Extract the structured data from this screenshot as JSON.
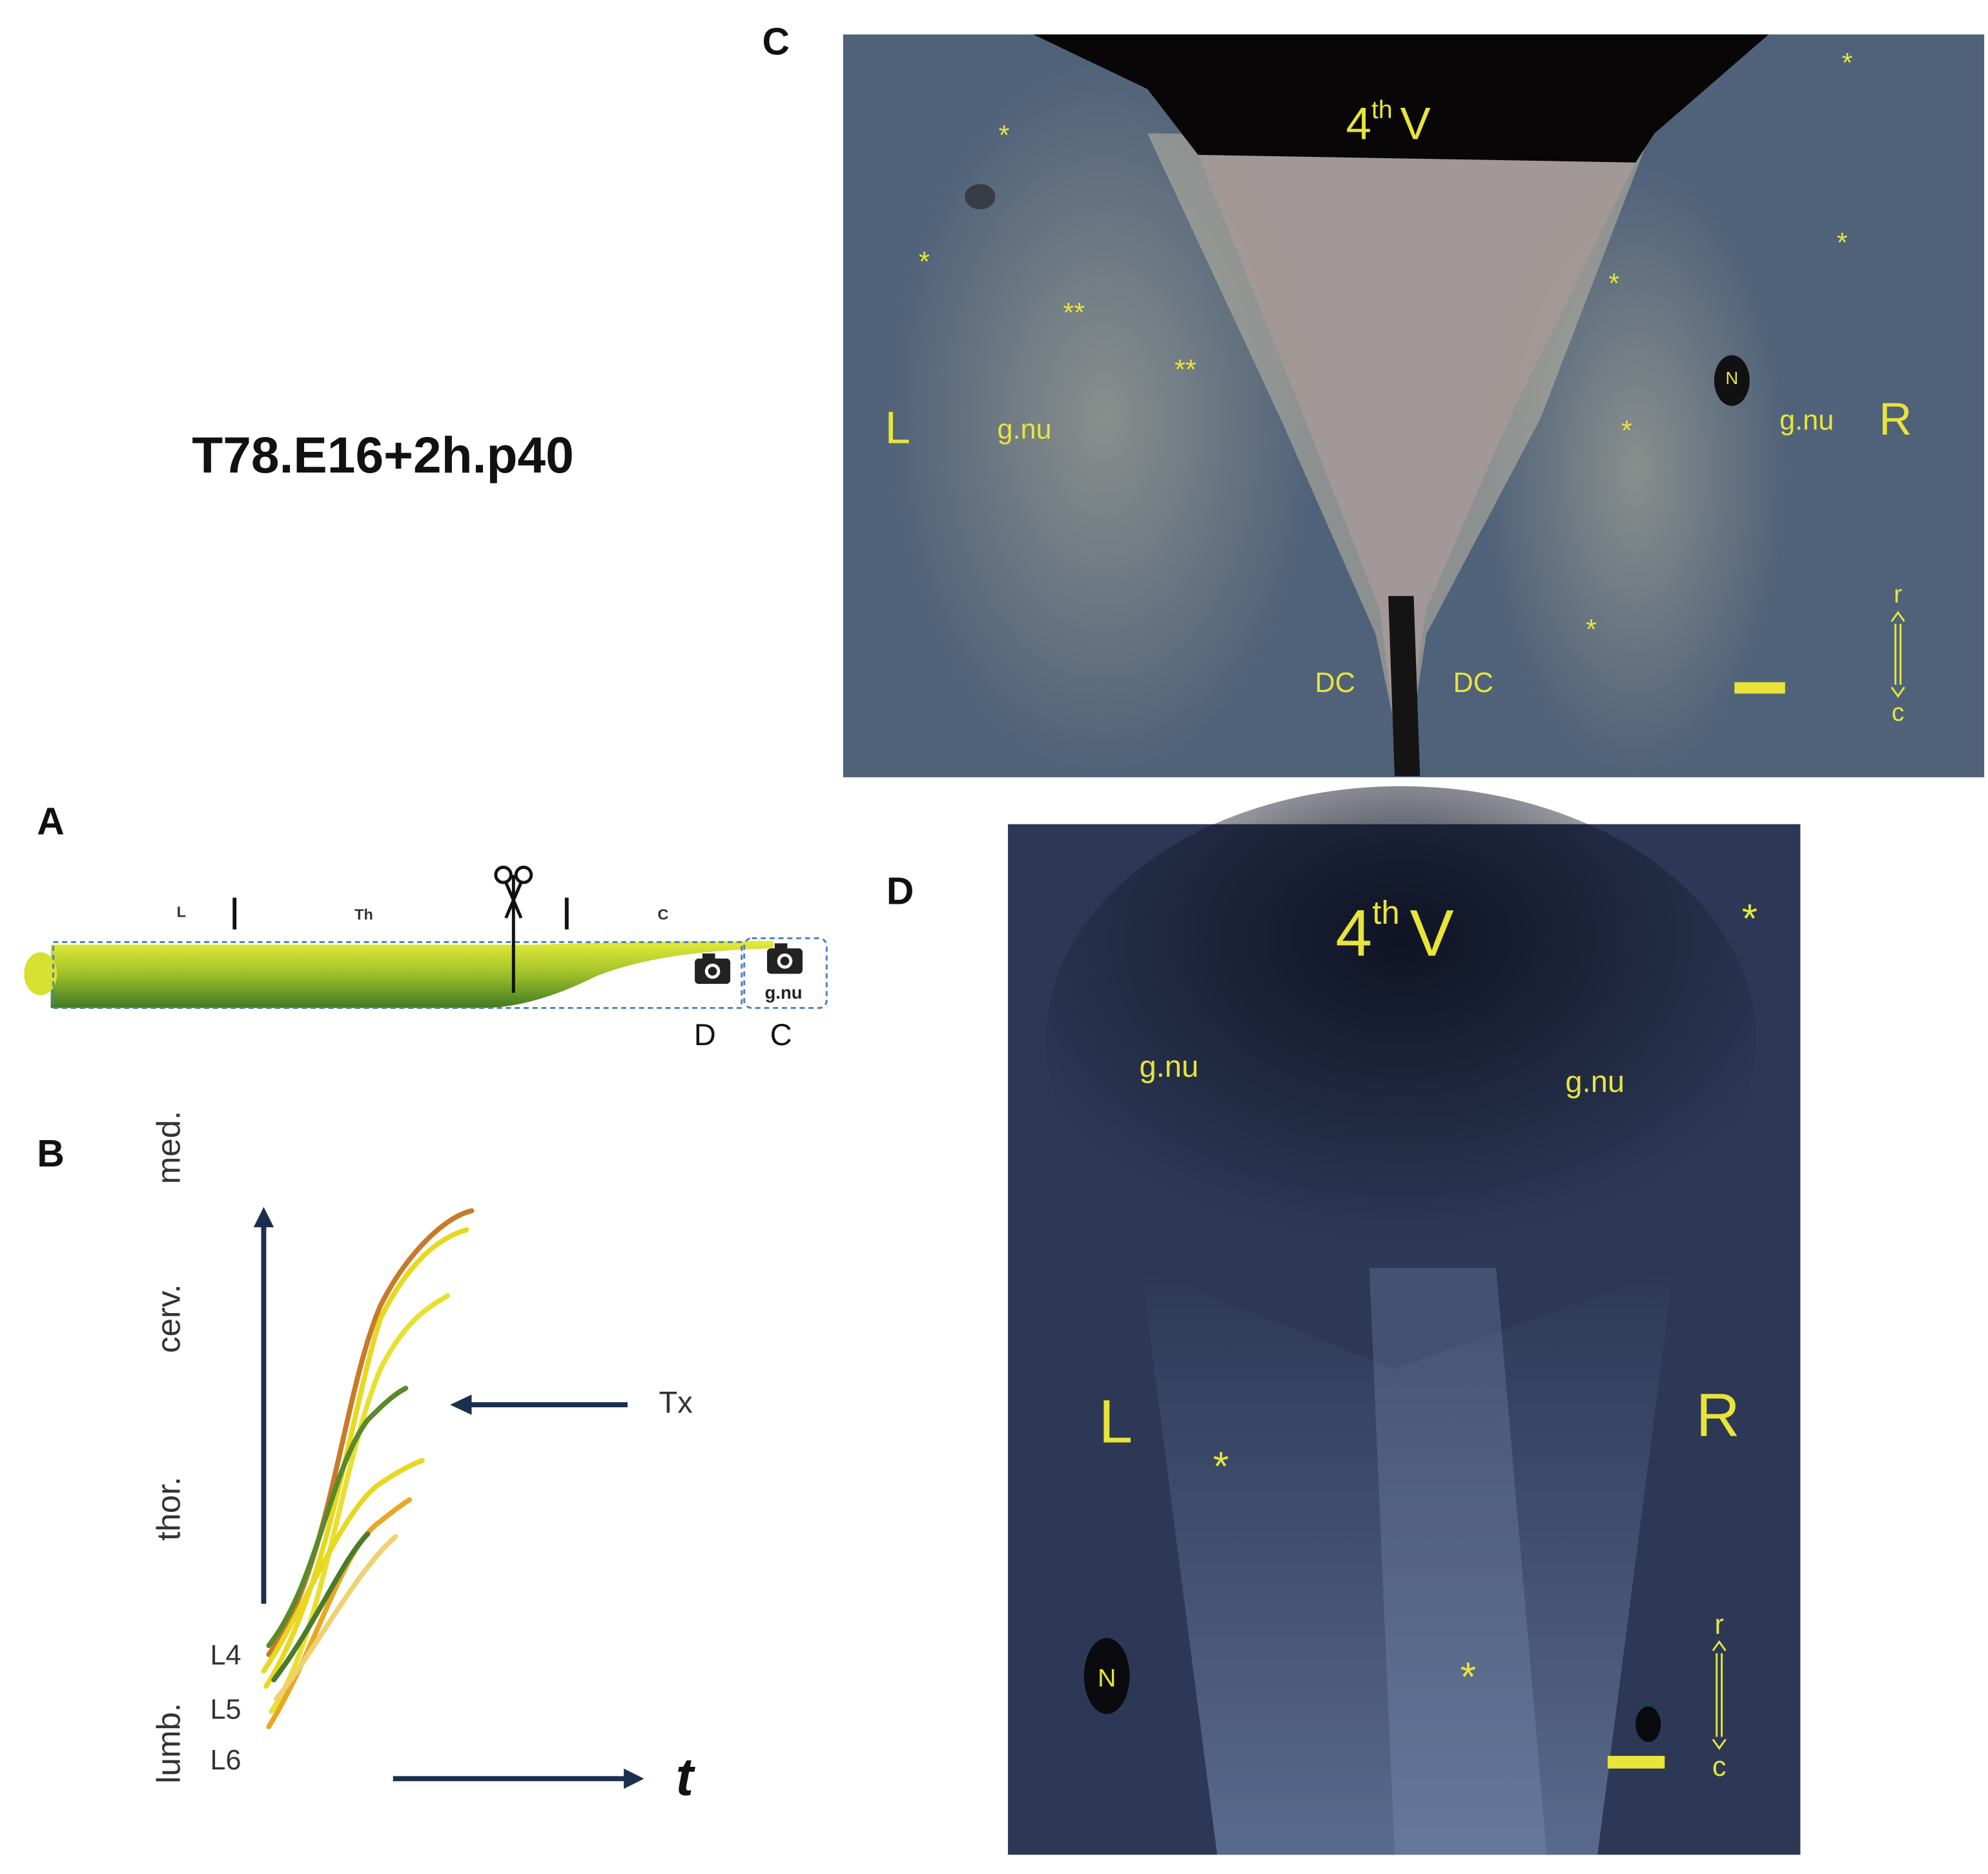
{
  "title": "T78.E16+2h.p40",
  "panels": {
    "A": {
      "label": "A",
      "segments": [
        "L",
        "Th",
        "C"
      ],
      "box_label": "g.nu",
      "camera_labels": [
        "D",
        "C"
      ]
    },
    "B": {
      "label": "B",
      "axis_labels": [
        "lumb.",
        "thor.",
        "cerv.",
        "med."
      ],
      "levels": [
        "L4",
        "L5",
        "L6"
      ],
      "marker": "Tx",
      "time": "t"
    },
    "C": {
      "label": "C",
      "ventricle": {
        "base": "4",
        "sup": "th",
        "name": "V"
      },
      "sides": [
        "L",
        "R"
      ],
      "nuclei": [
        "g.nu",
        "g.nu"
      ],
      "dc": [
        "DC",
        "DC"
      ],
      "nerve": "N",
      "asterisks": [
        "*",
        "*",
        "*",
        "*",
        "*",
        "*",
        "*"
      ],
      "double_asterisks": [
        "**",
        "**"
      ],
      "orientation": [
        "r",
        "c"
      ]
    },
    "D": {
      "label": "D",
      "ventricle": {
        "base": "4",
        "sup": "th",
        "name": "V"
      },
      "sides": [
        "L",
        "R"
      ],
      "nuclei": [
        "g.nu",
        "g.nu"
      ],
      "nerve": "N",
      "asterisks": [
        "*",
        "*",
        "*"
      ],
      "orientation": [
        "r",
        "c"
      ]
    }
  }
}
